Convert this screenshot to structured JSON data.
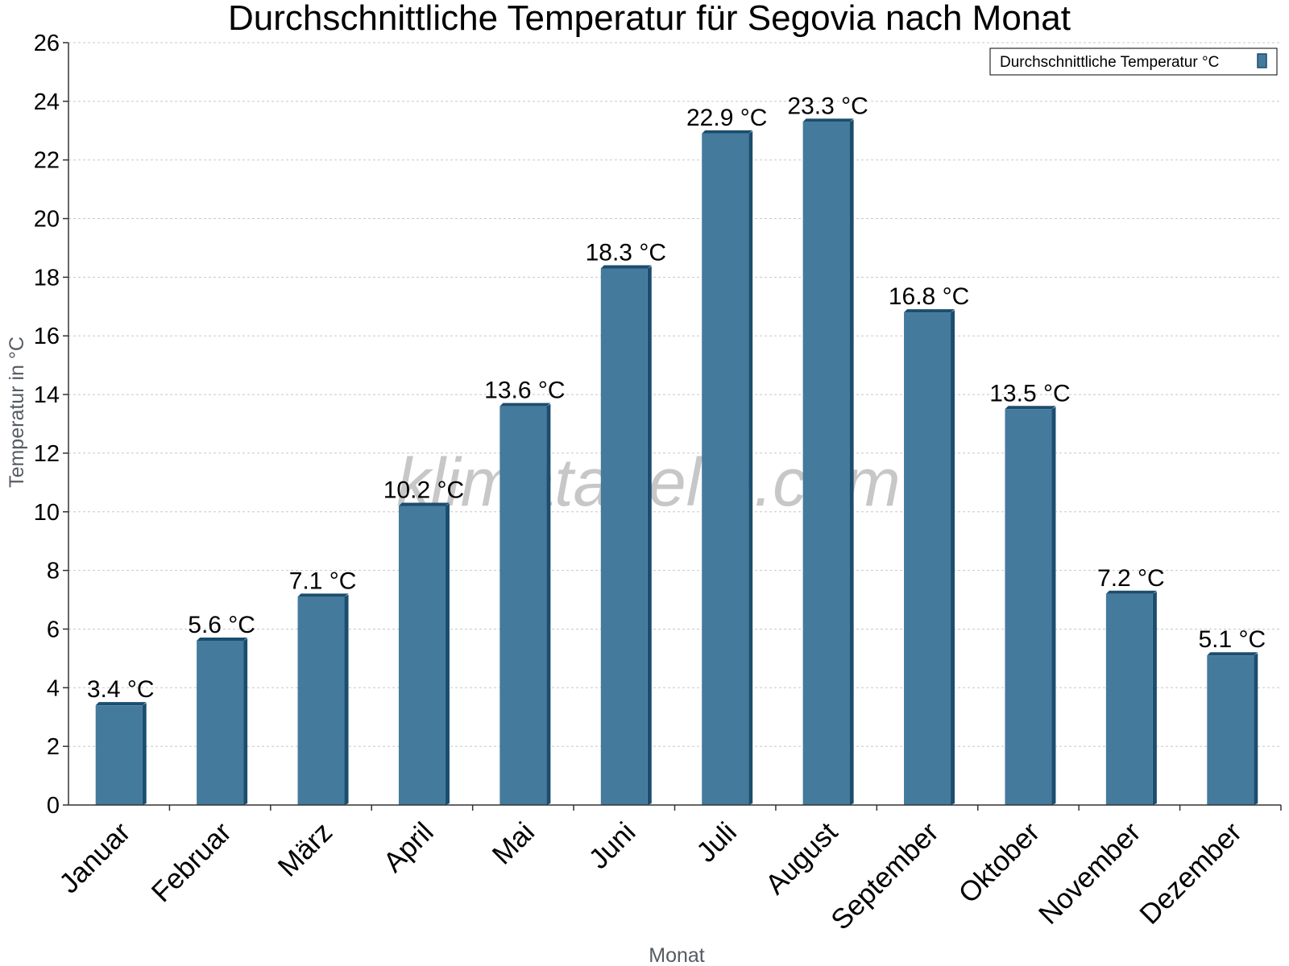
{
  "watermark": "klimatabelle.com",
  "colors": {
    "bar_front": "#447a9c",
    "bar_dark": "#1b4d6e",
    "grid": "#c8c8c8",
    "axis": "#333333"
  },
  "chart_data": {
    "type": "bar",
    "title": "Durchschnittliche Temperatur für Segovia nach Monat",
    "xlabel": "Monat",
    "ylabel": "Temperatur in °C",
    "ylim": [
      0,
      26
    ],
    "yticks": [
      0,
      2,
      4,
      6,
      8,
      10,
      12,
      14,
      16,
      18,
      20,
      22,
      24,
      26
    ],
    "grid": true,
    "legend_position": "top-right",
    "categories": [
      "Januar",
      "Februar",
      "März",
      "April",
      "Mai",
      "Juni",
      "Juli",
      "August",
      "September",
      "Oktober",
      "November",
      "Dezember"
    ],
    "series": [
      {
        "name": "Durchschnittliche Temperatur °C",
        "values": [
          3.4,
          5.6,
          7.1,
          10.2,
          13.6,
          18.3,
          22.9,
          23.3,
          16.8,
          13.5,
          7.2,
          5.1
        ],
        "labels": [
          "3.4 °C",
          "5.6 °C",
          "7.1 °C",
          "10.2 °C",
          "13.6 °C",
          "18.3 °C",
          "22.9 °C",
          "23.3 °C",
          "16.8 °C",
          "13.5 °C",
          "7.2 °C",
          "5.1 °C"
        ]
      }
    ]
  }
}
